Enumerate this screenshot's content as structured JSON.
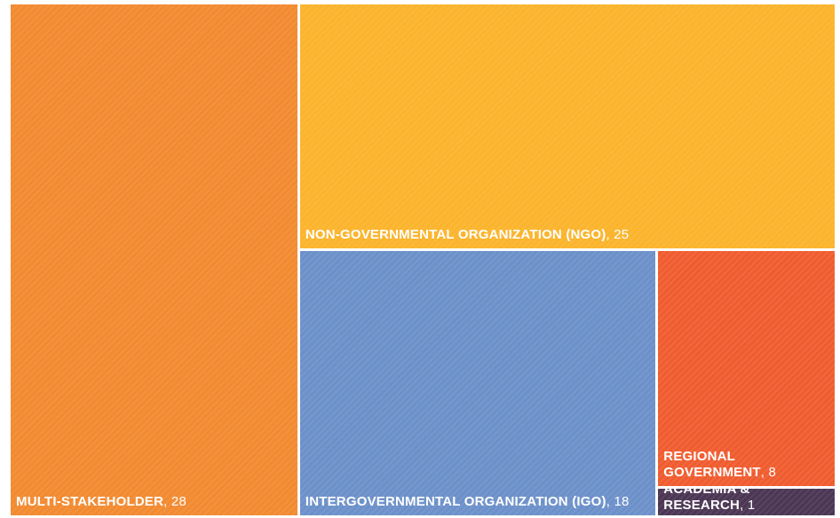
{
  "chart_data": {
    "type": "treemap",
    "categories": [
      "MULTI-STAKEHOLDER",
      "NON-GOVERNMENTAL ORGANIZATION (NGO)",
      "INTERGOVERNMENTAL ORGANIZATION (IGO)",
      "REGIONAL GOVERNMENT",
      "ACADEMIA & RESEARCH"
    ],
    "values": [
      28,
      25,
      18,
      8,
      1
    ],
    "colors": [
      "#f28a30",
      "#fbb42c",
      "#6c90c9",
      "#f05c2f",
      "#4b3654"
    ]
  }
}
